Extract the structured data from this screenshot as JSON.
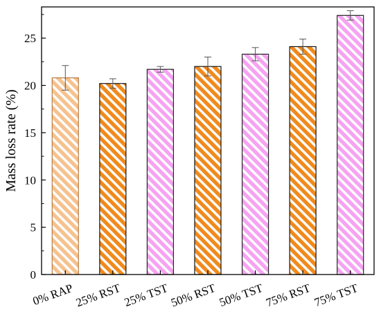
{
  "chart_data": {
    "type": "bar",
    "title": "",
    "xlabel": "",
    "ylabel": "Mass loss rate (%)",
    "ylim": [
      0,
      28.3
    ],
    "yticks": [
      0,
      5,
      10,
      15,
      20,
      25
    ],
    "ytick_labels": [
      "0",
      "5",
      "10",
      "15",
      "20",
      "25"
    ],
    "categories": [
      "0% RAP",
      "25% RST",
      "25% TST",
      "50% RST",
      "50% TST",
      "75% RST",
      "75% TST"
    ],
    "values": [
      20.8,
      20.2,
      21.7,
      22.0,
      23.3,
      24.1,
      27.4
    ],
    "errors": [
      1.3,
      0.5,
      0.3,
      1.0,
      0.7,
      0.8,
      0.5
    ],
    "bar_fill_colors": [
      "#f5c28f",
      "#f08a1c",
      "#f5a3f2",
      "#f08a1c",
      "#f5a3f2",
      "#f08a1c",
      "#f5a3f2"
    ],
    "bar_stroke_colors": [
      "#b87a40",
      "#111111",
      "#222222",
      "#111111",
      "#222222",
      "#111111",
      "#222222"
    ],
    "hatch": "diagonal white stripes",
    "grid": false,
    "legend": "none"
  }
}
